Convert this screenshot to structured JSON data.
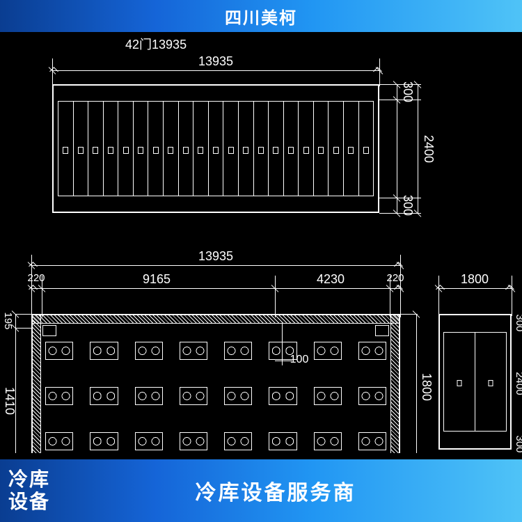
{
  "banner": {
    "top_title": "四川美柯",
    "bottom_left_line1": "冷库",
    "bottom_left_line2": "设备",
    "bottom_right": "冷库设备服务商"
  },
  "drawing": {
    "title_text": "42门13935",
    "door_count": 21,
    "colors": {
      "background": "#000000",
      "line": "#ffffff",
      "banner_gradient_start": "#0a3d91",
      "banner_gradient_end": "#4fc3f7"
    },
    "elevation": {
      "width_dim": "13935",
      "right_dims": [
        "300",
        "2400",
        "300"
      ]
    },
    "plan": {
      "top_total": "13935",
      "segments": [
        "220",
        "9165",
        "4230",
        "220"
      ],
      "left_dims": [
        "195",
        "1410"
      ],
      "interior_label": "100",
      "right_dim": "1800",
      "box_rows": 3,
      "boxes_per_row": 8
    },
    "side_elevation": {
      "top_dim": "1800",
      "right_dims": [
        "300",
        "2400",
        "300"
      ],
      "door_count": 2
    }
  }
}
